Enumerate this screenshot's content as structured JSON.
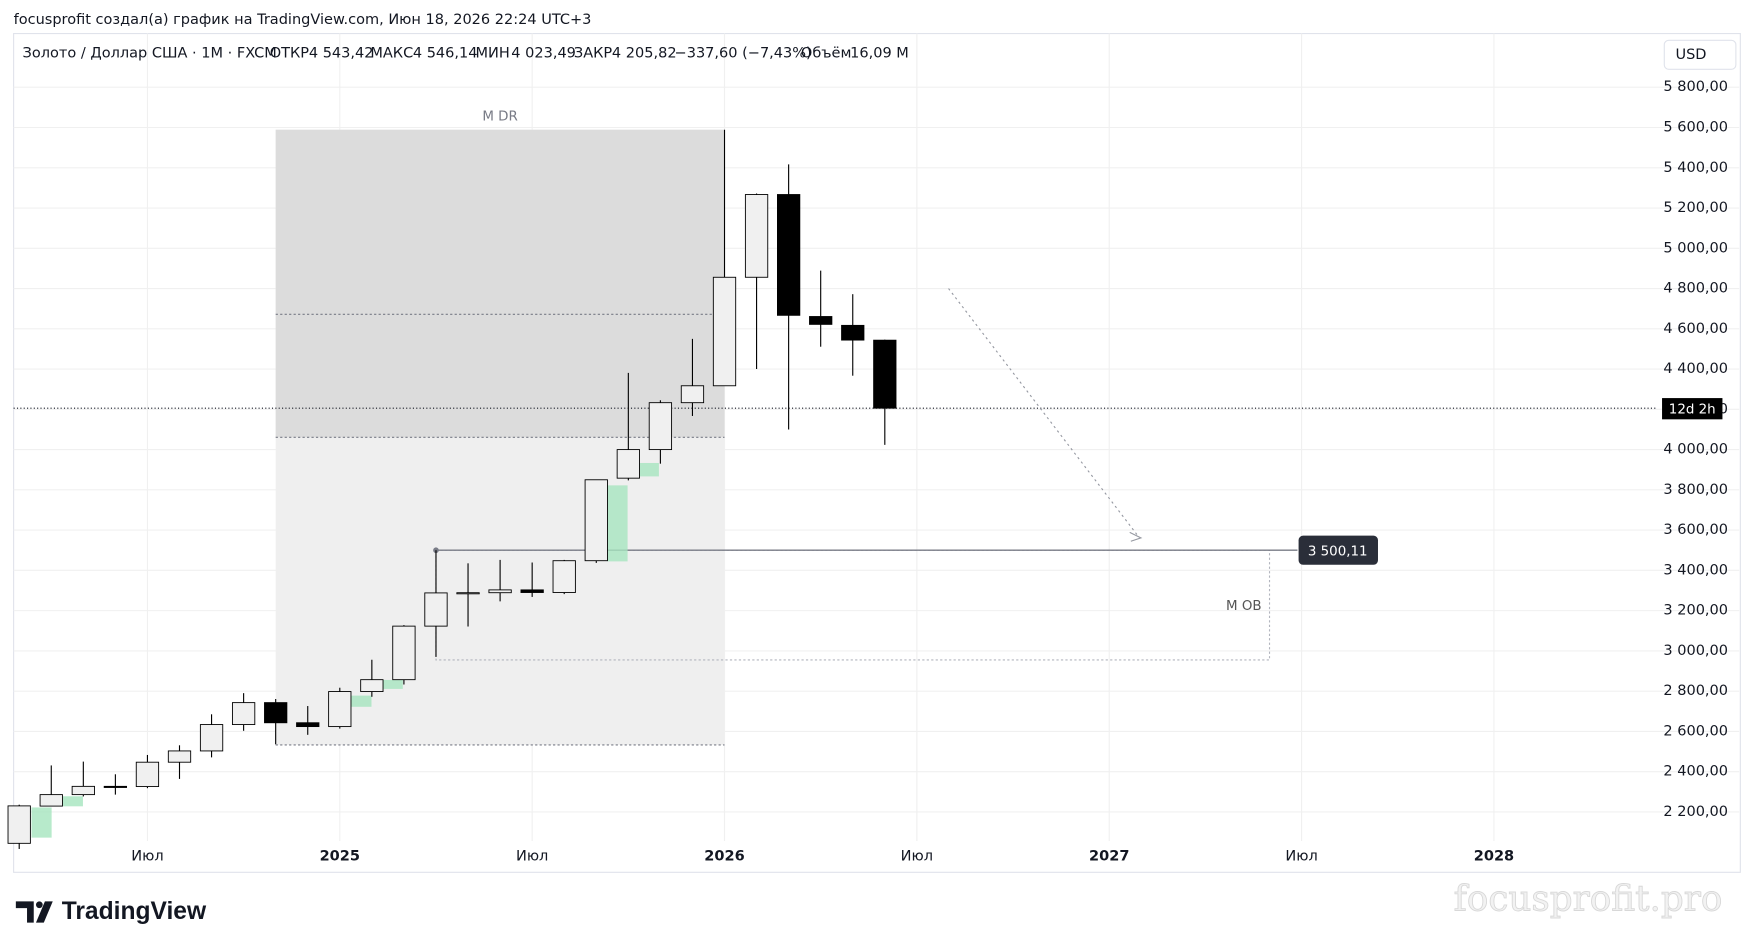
{
  "header": {
    "author_line": "focusprofit создал(а) график на TradingView.com, Июн 18, 2026 22:24 UTC+3",
    "currency_button": "USD",
    "logo": "TradingView",
    "watermark": "focusprofit.pro"
  },
  "legend": {
    "symbol": "Золото / Доллар США · 1M · FXCM",
    "open_label": "ОТКР",
    "open": "4 543,42",
    "high_label": "МАКС",
    "high": "4 546,14",
    "low_label": "МИН",
    "low": "4 023,49",
    "close_label": "ЗАКР",
    "close": "4 205,82",
    "change": "−337,60 (−7,43%)",
    "volume_label": "Объём",
    "volume": "16,09 M"
  },
  "chart_data": {
    "type": "candlestick",
    "categories": [
      null,
      null,
      null,
      null,
      "Июл",
      null,
      null,
      null,
      null,
      null,
      "2025",
      null,
      null,
      null,
      null,
      null,
      "Июл",
      null,
      null,
      null,
      null,
      null,
      "2026",
      null,
      null,
      null,
      null,
      null,
      "Июл",
      null,
      null,
      null,
      null,
      null,
      "2027",
      null,
      null,
      null,
      null,
      null,
      "Июл",
      null,
      null,
      null,
      null,
      null,
      "2028"
    ],
    "open": [
      2044,
      2229,
      2286,
      2327,
      2326,
      2447,
      2503,
      2634,
      2743,
      2643,
      2624,
      2798,
      2857,
      3123,
      3288,
      3289,
      3303,
      3290,
      3448,
      3858,
      4000,
      4233,
      4317,
      4856,
      5267,
      4661,
      4617,
      4543.42,
      null,
      null,
      null,
      null,
      null,
      null,
      null,
      null,
      null,
      null,
      null,
      null,
      null,
      null,
      null,
      null,
      null,
      null,
      null
    ],
    "high": [
      2236,
      2431,
      2450,
      2387,
      2483,
      2531,
      2685,
      2790,
      2761,
      2726,
      2817,
      2956,
      3128,
      3500,
      3435,
      3452,
      3439,
      3452,
      3850,
      4381,
      4245,
      4550,
      5589,
      5272,
      5417,
      4889,
      4772,
      4546.14,
      null,
      null,
      null,
      null,
      null,
      null,
      null,
      null,
      null,
      null,
      null,
      null,
      null,
      null,
      null,
      null,
      null,
      null,
      null
    ],
    "low": [
      2016,
      2228,
      2277,
      2286,
      2318,
      2364,
      2471,
      2603,
      2536,
      2583,
      2614,
      2772,
      2833,
      2970,
      3121,
      3246,
      3268,
      3282,
      3437,
      3847,
      3930,
      4167,
      4317,
      4400,
      4100,
      4511,
      4367,
      4023.49,
      null,
      null,
      null,
      null,
      null,
      null,
      null,
      null,
      null,
      null,
      null,
      null,
      null,
      null,
      null,
      null,
      null,
      null,
      null
    ],
    "close": [
      2230,
      2286,
      2327,
      2326,
      2447,
      2503,
      2634,
      2743,
      2643,
      2624,
      2798,
      2857,
      3123,
      3288,
      3289,
      3303,
      3290,
      3448,
      3850,
      4000,
      4233,
      4317,
      4856,
      5267,
      4667,
      4622,
      4544,
      4205.82,
      null,
      null,
      null,
      null,
      null,
      null,
      null,
      null,
      null,
      null,
      null,
      null,
      null,
      null,
      null,
      null,
      null,
      null,
      null
    ],
    "up_color": "#f0f0f0",
    "down_color": "#000000",
    "ylim": [
      2055.6,
      6066.7
    ],
    "yticks": [
      {
        "value": 2200,
        "label": "2 200,00"
      },
      {
        "value": 2400,
        "label": "2 400,00"
      },
      {
        "value": 2600,
        "label": "2 600,00"
      },
      {
        "value": 2800,
        "label": "2 800,00"
      },
      {
        "value": 3000,
        "label": "3 000,00"
      },
      {
        "value": 3200,
        "label": "3 200,00"
      },
      {
        "value": 3400,
        "label": "3 400,00"
      },
      {
        "value": 3600,
        "label": "3 600,00"
      },
      {
        "value": 3800,
        "label": "3 800,00"
      },
      {
        "value": 4000,
        "label": "4 000,00"
      },
      {
        "value": 4200,
        "label": "4 200,00"
      },
      {
        "value": 4400,
        "label": "4 400,00"
      },
      {
        "value": 4600,
        "label": "4 600,00"
      },
      {
        "value": 4800,
        "label": "4 800,00"
      },
      {
        "value": 5000,
        "label": "5 000,00"
      },
      {
        "value": 5200,
        "label": "5 200,00"
      },
      {
        "value": 5400,
        "label": "5 400,00"
      },
      {
        "value": 5600,
        "label": "5 600,00"
      },
      {
        "value": 5800,
        "label": "5 800,00"
      }
    ],
    "grid": true,
    "last_price": 4205.82,
    "countdown": "12d 2h",
    "zones": [
      {
        "label": "M DR",
        "high": 5589,
        "low": 2533,
        "inner_high": 4672,
        "inner_low": 4061
      },
      {
        "label": "M OB",
        "high": 3500.11,
        "low": 2955,
        "level_label": "3 500,11"
      }
    ]
  }
}
